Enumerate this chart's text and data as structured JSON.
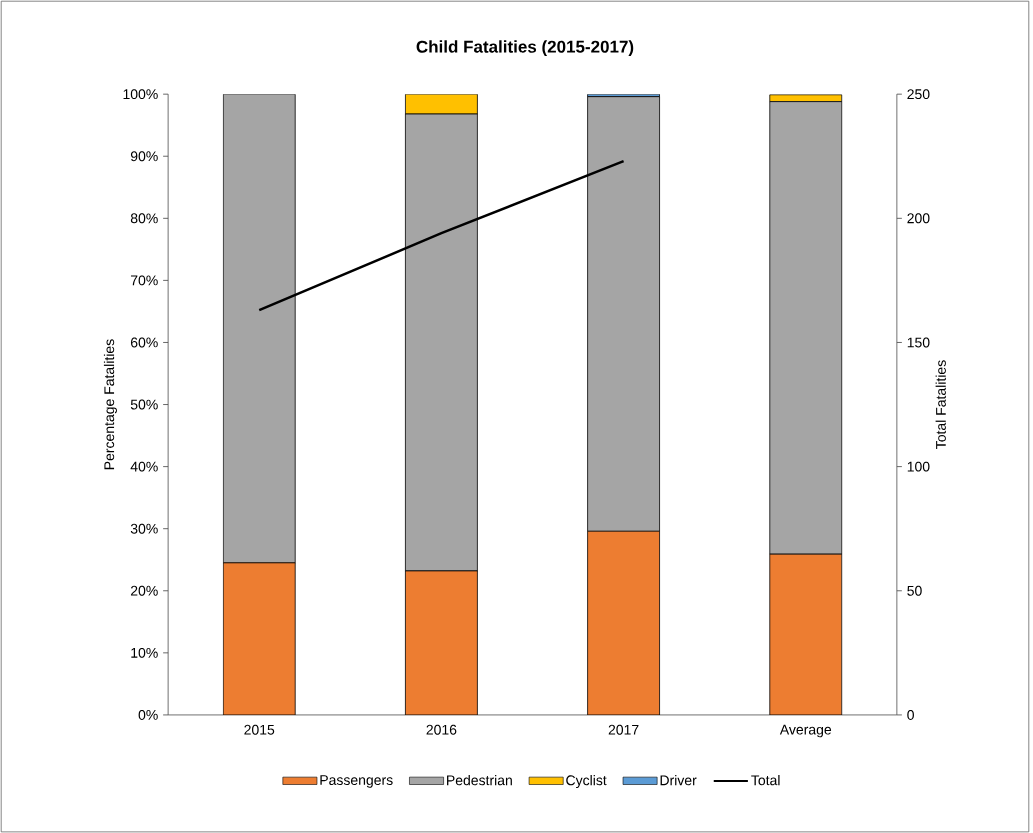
{
  "chart_data": {
    "type": "bar",
    "title": "Child Fatalities (2015-2017)",
    "ylabel": "Percentage Fatalities",
    "y2label": "Total Fatalities",
    "categories": [
      "2015",
      "2016",
      "2017",
      "Average"
    ],
    "stacked": true,
    "ylim": [
      0,
      100
    ],
    "yticks": [
      {
        "value": 0,
        "label": "0%"
      },
      {
        "value": 10,
        "label": "10%"
      },
      {
        "value": 20,
        "label": "20%"
      },
      {
        "value": 30,
        "label": "30%"
      },
      {
        "value": 40,
        "label": "40%"
      },
      {
        "value": 50,
        "label": "50%"
      },
      {
        "value": 60,
        "label": "60%"
      },
      {
        "value": 70,
        "label": "70%"
      },
      {
        "value": 80,
        "label": "80%"
      },
      {
        "value": 90,
        "label": "90%"
      },
      {
        "value": 100,
        "label": "100%"
      }
    ],
    "y2lim": [
      0,
      250
    ],
    "y2ticks": [
      0,
      50,
      100,
      150,
      200,
      250
    ],
    "series": [
      {
        "name": "Passengers",
        "color": "#ed7d31",
        "values": [
          24.5,
          23.2,
          29.6,
          25.9
        ]
      },
      {
        "name": "Pedestrian",
        "color": "#a5a5a5",
        "values": [
          75.5,
          73.6,
          70.0,
          72.9
        ]
      },
      {
        "name": "Cyclist",
        "color": "#ffc000",
        "values": [
          0,
          3.2,
          0,
          1.1
        ]
      },
      {
        "name": "Driver",
        "color": "#5b9bd5",
        "values": [
          0,
          0,
          0.4,
          null
        ]
      },
      {
        "name": "Total",
        "type": "line",
        "axis": "y2",
        "color": "#000000",
        "values": [
          163,
          194,
          223,
          null
        ]
      }
    ],
    "legend": "bottom",
    "grid": false,
    "marker": "none",
    "line_style": "solid"
  }
}
